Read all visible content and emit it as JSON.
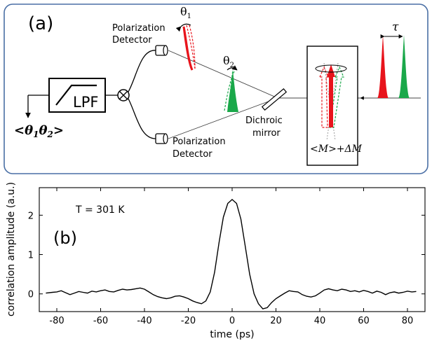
{
  "panel_a": {
    "label": "(a)",
    "lpf_label": "LPF",
    "output_label_open": "<",
    "output_theta1": "θ",
    "output_theta1_sub": "1",
    "output_theta2": "θ",
    "output_theta2_sub": "2",
    "output_label_close": ">",
    "detector_top_line1": "Polarization",
    "detector_top_line2": "Detector",
    "detector_bottom_line1": "Polarization",
    "detector_bottom_line2": "Detector",
    "theta1": "θ",
    "theta1_sub": "1",
    "theta2": "θ",
    "theta2_sub": "2",
    "mirror_line1": "Dichroic",
    "mirror_line2": "mirror",
    "magnetization_label": "<M>+ΔM",
    "delay_label": "τ",
    "colors": {
      "red": "#e8141c",
      "green": "#1aa84a",
      "frame": "#4a6fa5"
    }
  },
  "panel_b": {
    "label": "(b)",
    "annotation": "T = 301 K",
    "chart_data": {
      "type": "line",
      "title": "",
      "xlabel": "time (ps)",
      "ylabel": "correlation amplitude (a.u.)",
      "xlim": [
        -88,
        88
      ],
      "ylim": [
        -0.45,
        2.7
      ],
      "xticks": [
        -80,
        -60,
        -40,
        -20,
        0,
        20,
        40,
        60,
        80
      ],
      "yticks": [
        0,
        1,
        2
      ],
      "grid": false,
      "series": [
        {
          "x": [
            -85,
            -82,
            -80,
            -78,
            -76,
            -74,
            -72,
            -70,
            -68,
            -66,
            -64,
            -62,
            -60,
            -58,
            -56,
            -54,
            -52,
            -50,
            -48,
            -46,
            -44,
            -42,
            -40,
            -38,
            -36,
            -34,
            -32,
            -30,
            -28,
            -26,
            -24,
            -22,
            -20,
            -18,
            -16,
            -14,
            -12,
            -10,
            -8,
            -6,
            -4,
            -2,
            0,
            2,
            4,
            6,
            8,
            10,
            12,
            14,
            16,
            18,
            20,
            22,
            24,
            26,
            28,
            30,
            32,
            34,
            36,
            38,
            40,
            42,
            44,
            46,
            48,
            50,
            52,
            54,
            56,
            58,
            60,
            62,
            64,
            66,
            68,
            70,
            72,
            74,
            76,
            78,
            80,
            82,
            84
          ],
          "y": [
            0.02,
            0.04,
            0.05,
            0.08,
            0.03,
            -0.02,
            0.02,
            0.06,
            0.04,
            0.02,
            0.07,
            0.05,
            0.08,
            0.1,
            0.06,
            0.05,
            0.09,
            0.12,
            0.1,
            0.11,
            0.13,
            0.15,
            0.12,
            0.05,
            -0.02,
            -0.07,
            -0.1,
            -0.12,
            -0.1,
            -0.06,
            -0.05,
            -0.08,
            -0.12,
            -0.18,
            -0.22,
            -0.25,
            -0.18,
            0.05,
            0.55,
            1.3,
            1.95,
            2.3,
            2.4,
            2.3,
            1.9,
            1.2,
            0.5,
            0.0,
            -0.25,
            -0.38,
            -0.35,
            -0.22,
            -0.12,
            -0.05,
            0.02,
            0.08,
            0.06,
            0.05,
            -0.02,
            -0.06,
            -0.08,
            -0.05,
            0.02,
            0.1,
            0.13,
            0.1,
            0.08,
            0.12,
            0.1,
            0.06,
            0.08,
            0.05,
            0.09,
            0.06,
            0.02,
            0.07,
            0.04,
            -0.02,
            0.03,
            0.05,
            0.02,
            0.04,
            0.07,
            0.05,
            0.06
          ]
        }
      ]
    }
  }
}
